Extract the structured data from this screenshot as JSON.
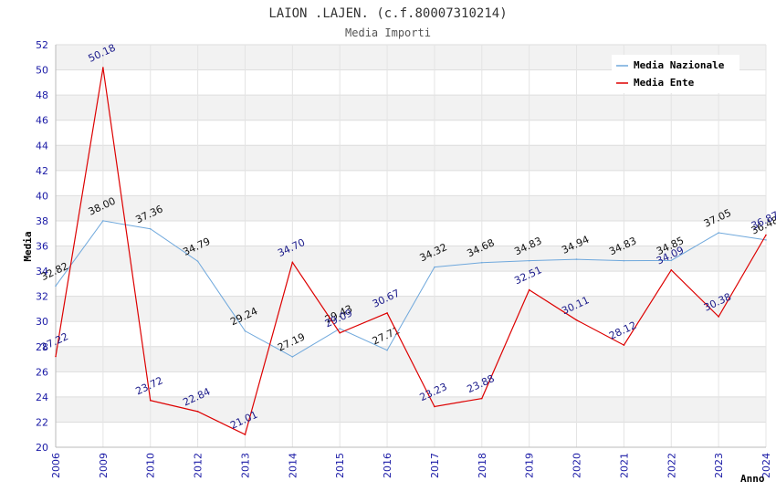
{
  "chart_data": {
    "type": "line",
    "title": "LAION .LAJEN. (c.f.80007310214)",
    "subtitle": "Media Importi",
    "ylabel": "Media",
    "xlabel": "Anno",
    "ylim": [
      20,
      52
    ],
    "yticks": [
      "20",
      "22",
      "24",
      "26",
      "28",
      "30",
      "32",
      "34",
      "36",
      "38",
      "40",
      "42",
      "44",
      "46",
      "48",
      "50",
      "52"
    ],
    "categories": [
      "2006",
      "2009",
      "2010",
      "2012",
      "2013",
      "2014",
      "2015",
      "2016",
      "2017",
      "2018",
      "2019",
      "2020",
      "2021",
      "2022",
      "2023",
      "2024"
    ],
    "series": [
      {
        "name": "Media Nazionale",
        "color": "#6fa8dc",
        "values": [
          32.82,
          38.0,
          37.36,
          34.79,
          29.24,
          27.19,
          29.43,
          27.71,
          34.32,
          34.68,
          34.83,
          34.94,
          34.83,
          34.85,
          37.05,
          36.48
        ],
        "labels": [
          "32.82",
          "38.00",
          "37.36",
          "34.79",
          "29.24",
          "27.19",
          "29.43",
          "27.71",
          "34.32",
          "34.68",
          "34.83",
          "34.94",
          "34.83",
          "34.85",
          "37.05",
          "36.48"
        ]
      },
      {
        "name": "Media Ente",
        "color": "#dd0000",
        "values": [
          27.22,
          50.18,
          23.72,
          22.84,
          21.01,
          34.7,
          29.09,
          30.67,
          23.23,
          23.88,
          32.51,
          30.11,
          28.12,
          34.09,
          30.38,
          36.87
        ],
        "labels": [
          "27.22",
          "50.18",
          "23.72",
          "22.84",
          "21.01",
          "34.70",
          "29.09",
          "30.67",
          "23.23",
          "23.88",
          "32.51",
          "30.11",
          "28.12",
          "34.09",
          "30.38",
          "36.87"
        ]
      }
    ]
  }
}
